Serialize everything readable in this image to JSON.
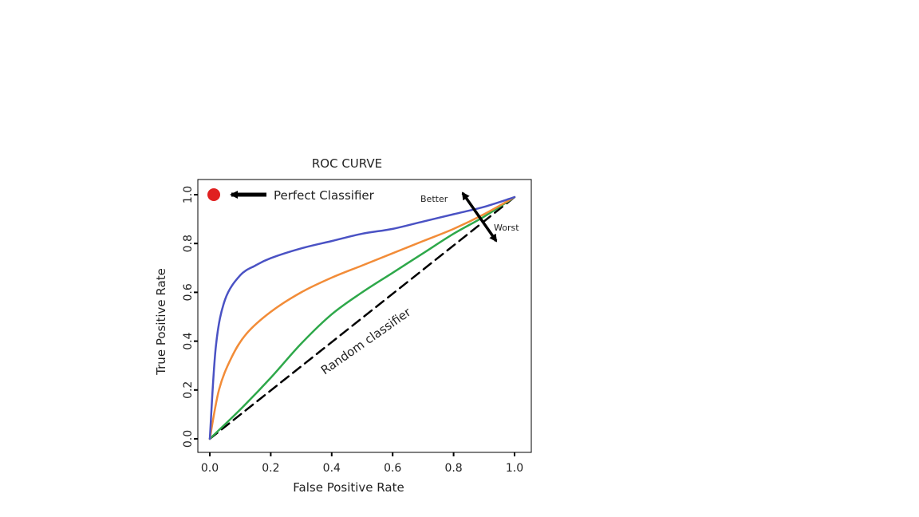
{
  "chart_data": {
    "type": "line",
    "title": "ROC CURVE",
    "xlabel": "False Positive Rate",
    "ylabel": "True Positive Rate",
    "xlim": [
      0,
      1
    ],
    "ylim": [
      0,
      1
    ],
    "xticks": [
      0.0,
      0.2,
      0.4,
      0.6,
      0.8,
      1.0
    ],
    "yticks": [
      0.0,
      0.2,
      0.4,
      0.6,
      0.8,
      1.0
    ],
    "xtick_labels": [
      "0.0",
      "0.2",
      "0.4",
      "0.6",
      "0.8",
      "1.0"
    ],
    "ytick_labels": [
      "0.0",
      "0.2",
      "0.4",
      "0.6",
      "0.8",
      "1.0"
    ],
    "grid": false,
    "legend": "none",
    "series": [
      {
        "color": "#4a52c4",
        "style": "solid",
        "x": [
          0,
          0.02,
          0.05,
          0.1,
          0.15,
          0.2,
          0.3,
          0.4,
          0.5,
          0.6,
          0.7,
          0.8,
          0.9,
          1.0
        ],
        "y": [
          0,
          0.38,
          0.57,
          0.67,
          0.71,
          0.74,
          0.78,
          0.81,
          0.84,
          0.86,
          0.89,
          0.92,
          0.95,
          0.99
        ]
      },
      {
        "color": "#f28c38",
        "style": "solid",
        "x": [
          0,
          0.03,
          0.07,
          0.12,
          0.2,
          0.3,
          0.4,
          0.5,
          0.6,
          0.7,
          0.8,
          0.9,
          1.0
        ],
        "y": [
          0,
          0.2,
          0.33,
          0.43,
          0.52,
          0.6,
          0.66,
          0.71,
          0.76,
          0.81,
          0.86,
          0.92,
          0.99
        ]
      },
      {
        "color": "#2ea84a",
        "style": "solid",
        "x": [
          0,
          0.1,
          0.2,
          0.3,
          0.4,
          0.5,
          0.6,
          0.7,
          0.8,
          0.9,
          1.0
        ],
        "y": [
          0,
          0.12,
          0.25,
          0.39,
          0.51,
          0.6,
          0.68,
          0.76,
          0.84,
          0.91,
          0.99
        ]
      },
      {
        "color": "#000000",
        "style": "dashed",
        "x": [
          0,
          1.0
        ],
        "y": [
          0,
          0.99
        ]
      }
    ],
    "perfect_point": {
      "x": 0.0,
      "y": 1.0,
      "color": "#e02020"
    },
    "annotations": {
      "perfect_classifier": "Perfect Classifier",
      "better": "Better",
      "worst": "Worst",
      "random_classifier": "Random classifier"
    }
  }
}
